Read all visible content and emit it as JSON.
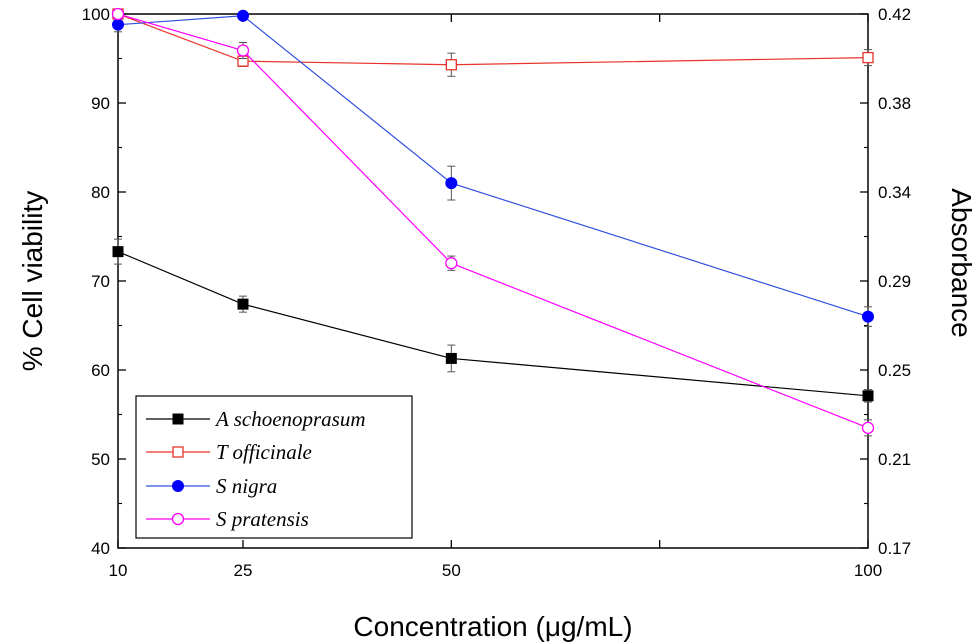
{
  "chart_data": {
    "type": "line",
    "xlabel": "Concentration (μg/mL)",
    "ylabel": "% Cell viability",
    "y2label": "Absorbance",
    "x_ticks": [
      "10",
      "25",
      "50",
      "100"
    ],
    "x": [
      10,
      25,
      50,
      100
    ],
    "y_ticks": [
      "40",
      "50",
      "60",
      "70",
      "80",
      "90",
      "100"
    ],
    "y2_ticks": [
      "0.17",
      "0.21",
      "0.25",
      "0.29",
      "0.34",
      "0.38",
      "0.42"
    ],
    "ylim": [
      40,
      100
    ],
    "legend_position": "bottom-left",
    "grid": false,
    "series": [
      {
        "name": "A schoenoprasum",
        "marker": "filled-square",
        "color": "#000000",
        "marker_color": "#000000",
        "values": [
          73.3,
          67.4,
          61.3,
          57.1
        ],
        "errors": [
          1.4,
          0.9,
          1.5,
          0.7
        ]
      },
      {
        "name": "T officinale",
        "marker": "open-square",
        "color": "#e8332a",
        "marker_color": "#e8332a",
        "values": [
          100.0,
          94.7,
          94.3,
          95.1
        ],
        "errors": [
          0.4,
          0.6,
          1.3,
          0.9
        ]
      },
      {
        "name": "S nigra",
        "marker": "filled-circle",
        "color": "#3050e0",
        "marker_color": "#0000ff",
        "values": [
          98.8,
          99.8,
          81.0,
          66.0
        ],
        "errors": [
          0.8,
          0.3,
          1.9,
          1.1
        ]
      },
      {
        "name": "S pratensis",
        "marker": "open-circle",
        "color": "#ff00ff",
        "marker_color": "#ff00ff",
        "values": [
          100.0,
          95.9,
          72.0,
          53.5
        ],
        "errors": [
          0.3,
          0.9,
          0.8,
          0.9
        ]
      }
    ]
  }
}
